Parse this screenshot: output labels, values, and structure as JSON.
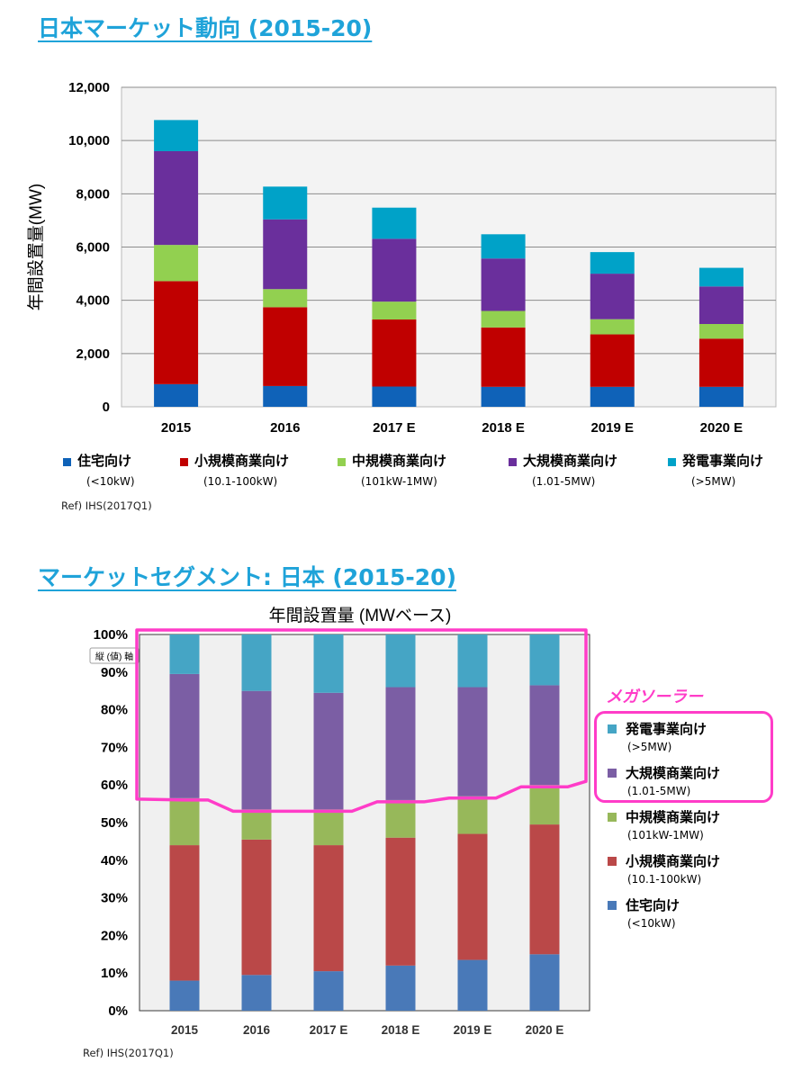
{
  "section1": {
    "title": "日本マーケット動向 (2015-20)"
  },
  "section2": {
    "title": "マーケットセグメント: 日本 (2015-20)"
  },
  "ref_text": "Ref) IHS(2017Q1)",
  "mega_solar_label": "メガソーラー",
  "axis_tooltip": "縦 (値) 軸",
  "colors": {
    "residential": "#0f62b8",
    "small": "#c00000",
    "medium": "#92d050",
    "large": "#6a2f9c",
    "utility": "#00a2c8",
    "residential_pct": "#4979b8",
    "small_pct": "#ba4848",
    "medium_pct": "#97b85a",
    "large_pct": "#7b5ea4",
    "utility_pct": "#45a5c5",
    "highlight": "#ff3cc8",
    "title": "#1fa3d9"
  },
  "legend": [
    {
      "key": "residential",
      "label": "住宅向け",
      "sub": "(<10kW)"
    },
    {
      "key": "small",
      "label": "小規模商業向け",
      "sub": "(10.1-100kW)"
    },
    {
      "key": "medium",
      "label": "中規模商業向け",
      "sub": "(101kW-1MW)"
    },
    {
      "key": "large",
      "label": "大規模商業向け",
      "sub": "(1.01-5MW)"
    },
    {
      "key": "utility",
      "label": "発電事業向け",
      "sub": "(>5MW)"
    }
  ],
  "chart_data": [
    {
      "type": "bar",
      "stacked": true,
      "title": "",
      "xlabel": "",
      "ylabel": "年間設置量(MW)",
      "ylim": [
        0,
        12000
      ],
      "yticks": [
        0,
        2000,
        4000,
        6000,
        8000,
        10000,
        12000
      ],
      "ytick_labels": [
        "0",
        "2,000",
        "4,000",
        "6,000",
        "8,000",
        "10,000",
        "12,000"
      ],
      "grid": true,
      "categories": [
        "2015",
        "2016",
        "2017 E",
        "2018 E",
        "2019 E",
        "2020 E"
      ],
      "series": [
        {
          "name": "住宅向け",
          "key": "residential",
          "values": [
            850,
            780,
            760,
            750,
            750,
            750
          ]
        },
        {
          "name": "小規模商業向け",
          "key": "small",
          "values": [
            3870,
            2960,
            2520,
            2230,
            1970,
            1810
          ]
        },
        {
          "name": "中規模商業向け",
          "key": "medium",
          "values": [
            1360,
            680,
            670,
            620,
            570,
            550
          ]
        },
        {
          "name": "大規模商業向け",
          "key": "large",
          "values": [
            3520,
            2620,
            2360,
            1970,
            1710,
            1410
          ]
        },
        {
          "name": "発電事業向け",
          "key": "utility",
          "values": [
            1170,
            1230,
            1170,
            910,
            810,
            700
          ]
        }
      ]
    },
    {
      "type": "bar",
      "stacked": true,
      "percent": true,
      "title": "年間設置量 (MWベース)",
      "xlabel": "",
      "ylabel": "",
      "ylim": [
        0,
        100
      ],
      "yticks": [
        0,
        10,
        20,
        30,
        40,
        50,
        60,
        70,
        80,
        90,
        100
      ],
      "ytick_labels": [
        "0%",
        "10%",
        "20%",
        "30%",
        "40%",
        "50%",
        "60%",
        "70%",
        "80%",
        "90%",
        "100%"
      ],
      "grid": false,
      "categories": [
        "2015",
        "2016",
        "2017 E",
        "2018 E",
        "2019 E",
        "2020 E"
      ],
      "series": [
        {
          "name": "住宅向け",
          "key": "residential_pct",
          "values": [
            8,
            9.5,
            10.5,
            12,
            13.5,
            15
          ]
        },
        {
          "name": "小規模商業向け",
          "key": "small_pct",
          "values": [
            36,
            36,
            33.5,
            34,
            33.5,
            34.5
          ]
        },
        {
          "name": "中規模商業向け",
          "key": "medium_pct",
          "values": [
            12.5,
            8,
            9.5,
            10,
            10,
            10.5
          ]
        },
        {
          "name": "大規模商業向け",
          "key": "large_pct",
          "values": [
            33,
            31.5,
            31,
            30,
            29,
            26.5
          ]
        },
        {
          "name": "発電事業向け",
          "key": "utility_pct",
          "values": [
            10.5,
            15,
            15.5,
            14,
            14,
            13.5
          ]
        }
      ]
    }
  ]
}
